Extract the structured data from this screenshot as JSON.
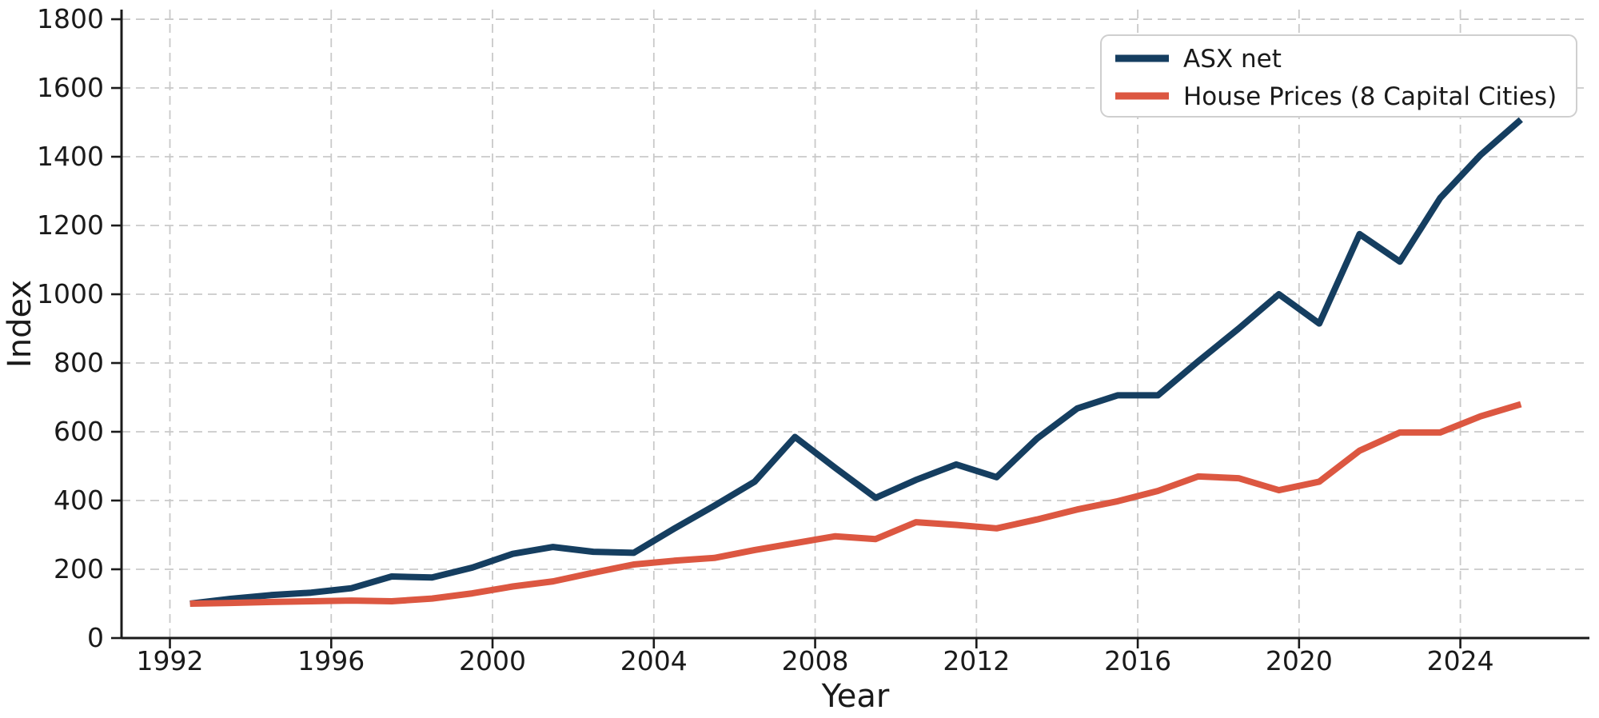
{
  "chart_data": {
    "type": "line",
    "title": "",
    "xlabel": "Year",
    "ylabel": "Index",
    "x": [
      1992.5,
      1993.5,
      1994.5,
      1995.5,
      1996.5,
      1997.5,
      1998.5,
      1999.5,
      2000.5,
      2001.5,
      2002.5,
      2003.5,
      2004.5,
      2005.5,
      2006.5,
      2007.5,
      2008.5,
      2009.5,
      2010.5,
      2011.5,
      2012.5,
      2013.5,
      2014.5,
      2015.5,
      2016.5,
      2017.5,
      2018.5,
      2019.5,
      2020.5,
      2021.5,
      2022.5,
      2023.5,
      2024.5,
      2025.5
    ],
    "series": [
      {
        "name": "ASX net",
        "color": "#153e60",
        "values": [
          100,
          114,
          125,
          132,
          145,
          179,
          176,
          205,
          245,
          265,
          251,
          248,
          318,
          385,
          455,
          585,
          495,
          408,
          460,
          505,
          468,
          580,
          668,
          706,
          706,
          805,
          900,
          1000,
          915,
          1175,
          1095,
          1280,
          1405,
          1508
        ]
      },
      {
        "name": "House Prices (8 Capital Cities)",
        "color": "#dc5741",
        "values": [
          100,
          102,
          105,
          107,
          109,
          107,
          115,
          130,
          150,
          165,
          190,
          214,
          225,
          233,
          256,
          276,
          296,
          288,
          337,
          329,
          319,
          345,
          374,
          398,
          428,
          470,
          465,
          430,
          455,
          545,
          598,
          598,
          645,
          680
        ]
      }
    ],
    "xlim": [
      1990.8,
      2027.2
    ],
    "ylim": [
      0,
      1828
    ],
    "x_ticks": [
      1992,
      1996,
      2000,
      2004,
      2008,
      2012,
      2016,
      2020,
      2024
    ],
    "y_ticks": [
      0,
      200,
      400,
      600,
      800,
      1000,
      1200,
      1400,
      1600,
      1800
    ],
    "grid": true,
    "legend_position": "upper right"
  },
  "style": {
    "background": "#ffffff",
    "grid_color": "#c9c9c9",
    "axis_color": "#1a1a1a",
    "text_color": "#1a1a1a",
    "legend_border_color": "#cfcfcf",
    "legend_fill": "#ffffff"
  }
}
